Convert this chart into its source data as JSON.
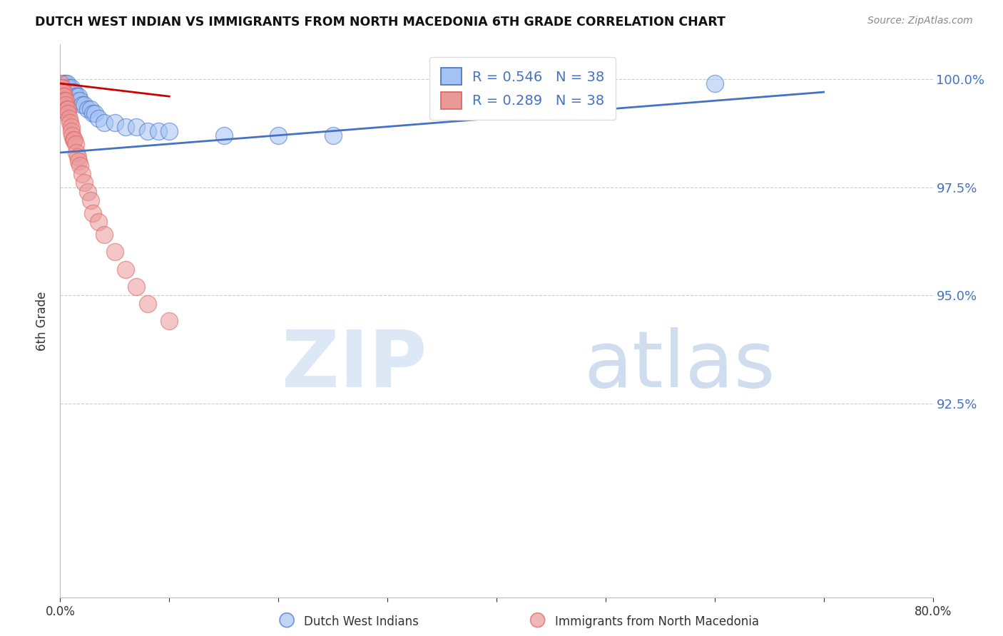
{
  "title": "DUTCH WEST INDIAN VS IMMIGRANTS FROM NORTH MACEDONIA 6TH GRADE CORRELATION CHART",
  "source": "Source: ZipAtlas.com",
  "ylabel": "6th Grade",
  "ytick_labels": [
    "100.0%",
    "97.5%",
    "95.0%",
    "92.5%"
  ],
  "ytick_values": [
    1.0,
    0.975,
    0.95,
    0.925
  ],
  "xlim": [
    0.0,
    0.8
  ],
  "ylim": [
    0.88,
    1.008
  ],
  "legend_label1": "Dutch West Indians",
  "legend_label2": "Immigrants from North Macedonia",
  "blue_color": "#a4c2f4",
  "pink_color": "#ea9999",
  "blue_line_color": "#4472c4",
  "pink_line_color": "#cc0000",
  "grid_color": "#cccccc",
  "ytick_color": "#4472c4",
  "blue_scatter_x": [
    0.001,
    0.002,
    0.003,
    0.003,
    0.004,
    0.005,
    0.005,
    0.006,
    0.007,
    0.008,
    0.009,
    0.01,
    0.01,
    0.012,
    0.013,
    0.014,
    0.015,
    0.016,
    0.017,
    0.018,
    0.02,
    0.022,
    0.025,
    0.028,
    0.03,
    0.032,
    0.035,
    0.04,
    0.05,
    0.06,
    0.07,
    0.08,
    0.09,
    0.1,
    0.15,
    0.2,
    0.6,
    0.25
  ],
  "blue_scatter_y": [
    0.993,
    0.997,
    0.998,
    0.999,
    0.999,
    0.998,
    0.999,
    0.999,
    0.998,
    0.998,
    0.997,
    0.998,
    0.997,
    0.997,
    0.997,
    0.996,
    0.996,
    0.995,
    0.996,
    0.995,
    0.994,
    0.994,
    0.993,
    0.993,
    0.992,
    0.992,
    0.991,
    0.99,
    0.99,
    0.989,
    0.989,
    0.988,
    0.988,
    0.988,
    0.987,
    0.987,
    0.999,
    0.987
  ],
  "pink_scatter_x": [
    0.0005,
    0.001,
    0.001,
    0.002,
    0.002,
    0.003,
    0.003,
    0.004,
    0.004,
    0.005,
    0.005,
    0.006,
    0.007,
    0.007,
    0.008,
    0.009,
    0.01,
    0.01,
    0.011,
    0.012,
    0.013,
    0.014,
    0.015,
    0.016,
    0.017,
    0.018,
    0.02,
    0.022,
    0.025,
    0.028,
    0.03,
    0.035,
    0.04,
    0.05,
    0.06,
    0.07,
    0.08,
    0.1
  ],
  "pink_scatter_y": [
    0.999,
    0.998,
    0.997,
    0.998,
    0.997,
    0.997,
    0.996,
    0.996,
    0.995,
    0.995,
    0.994,
    0.993,
    0.993,
    0.992,
    0.991,
    0.99,
    0.989,
    0.988,
    0.987,
    0.986,
    0.986,
    0.985,
    0.983,
    0.982,
    0.981,
    0.98,
    0.978,
    0.976,
    0.974,
    0.972,
    0.969,
    0.967,
    0.964,
    0.96,
    0.956,
    0.952,
    0.948,
    0.944
  ],
  "blue_trendline_x": [
    0.0,
    0.7
  ],
  "blue_trendline_y": [
    0.983,
    0.997
  ],
  "pink_trendline_x": [
    0.0,
    0.1
  ],
  "pink_trendline_y": [
    0.999,
    0.996
  ]
}
